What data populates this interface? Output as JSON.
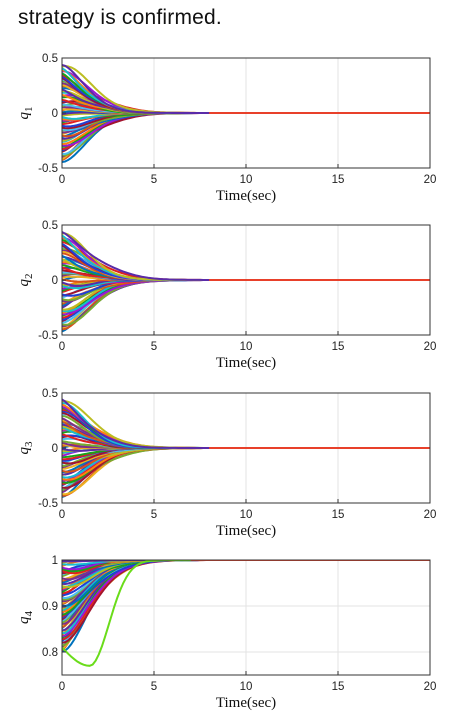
{
  "caption": "strategy is confirmed.",
  "series_palette": [
    "#0072BD",
    "#D95319",
    "#EDB120",
    "#7E2F8E",
    "#77AC30",
    "#4DBEEE",
    "#A2142F",
    "#1f3fd6",
    "#e02020",
    "#19a319",
    "#9a17d6",
    "#ff7f0e",
    "#17becf",
    "#bcbd22",
    "#5a2ba8"
  ],
  "chart_data": [
    {
      "type": "line",
      "id": "q1",
      "ylabel": "q",
      "ylabel_sub": "1",
      "xlabel": "Time(sec)",
      "xlim": [
        0,
        20
      ],
      "ylim": [
        -0.5,
        0.5
      ],
      "xticks": [
        0,
        5,
        10,
        15,
        20
      ],
      "yticks": [
        -0.5,
        0,
        0.5
      ],
      "ytick_labels": [
        "-0.5",
        "0",
        "0.5"
      ],
      "grid": true,
      "final_value": 0,
      "settling_time": 8,
      "initial_value_range": [
        -0.45,
        0.45
      ],
      "n_trajectories": 60
    },
    {
      "type": "line",
      "id": "q2",
      "ylabel": "q",
      "ylabel_sub": "2",
      "xlabel": "Time(sec)",
      "xlim": [
        0,
        20
      ],
      "ylim": [
        -0.5,
        0.5
      ],
      "xticks": [
        0,
        5,
        10,
        15,
        20
      ],
      "yticks": [
        -0.5,
        0,
        0.5
      ],
      "ytick_labels": [
        "-0.5",
        "0",
        "0.5"
      ],
      "grid": true,
      "final_value": 0,
      "settling_time": 8,
      "initial_value_range": [
        -0.47,
        0.45
      ],
      "n_trajectories": 60
    },
    {
      "type": "line",
      "id": "q3",
      "ylabel": "q",
      "ylabel_sub": "3",
      "xlabel": "Time(sec)",
      "xlim": [
        0,
        20
      ],
      "ylim": [
        -0.5,
        0.5
      ],
      "xticks": [
        0,
        5,
        10,
        15,
        20
      ],
      "yticks": [
        -0.5,
        0,
        0.5
      ],
      "ytick_labels": [
        "-0.5",
        "0",
        "0.5"
      ],
      "grid": true,
      "final_value": 0,
      "settling_time": 8,
      "initial_value_range": [
        -0.45,
        0.45
      ],
      "n_trajectories": 60
    },
    {
      "type": "line",
      "id": "q4",
      "ylabel": "q",
      "ylabel_sub": "4",
      "xlabel": "Time(sec)",
      "xlim": [
        0,
        20
      ],
      "ylim": [
        0.75,
        1.0
      ],
      "xticks": [
        0,
        5,
        10,
        15,
        20
      ],
      "yticks": [
        0.8,
        0.9,
        1.0
      ],
      "ytick_labels": [
        "0.8",
        "0.9",
        "1"
      ],
      "grid": true,
      "final_value": 1,
      "settling_time": 7,
      "initial_value_range": [
        0.8,
        1.0
      ],
      "minimum_dip": 0.77,
      "n_trajectories": 60
    }
  ]
}
